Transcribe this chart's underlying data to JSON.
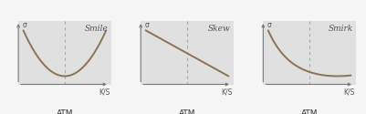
{
  "panels": [
    {
      "title": "Smile",
      "type": "smile"
    },
    {
      "title": "Skew",
      "type": "skew"
    },
    {
      "title": "Smirk",
      "type": "smirk"
    }
  ],
  "xlabel": "K/S",
  "ylabel": "σ",
  "atm_label": "ATM",
  "plot_bg": "#e0e0e0",
  "fig_bg": "#f5f5f5",
  "line_color": "#8B7355",
  "dashed_color": "#aaaaaa",
  "title_fontsize": 6.5,
  "label_fontsize": 5.5,
  "atm_fontsize": 6.5,
  "axis_label_fontsize": 5.5,
  "line_width": 1.4
}
